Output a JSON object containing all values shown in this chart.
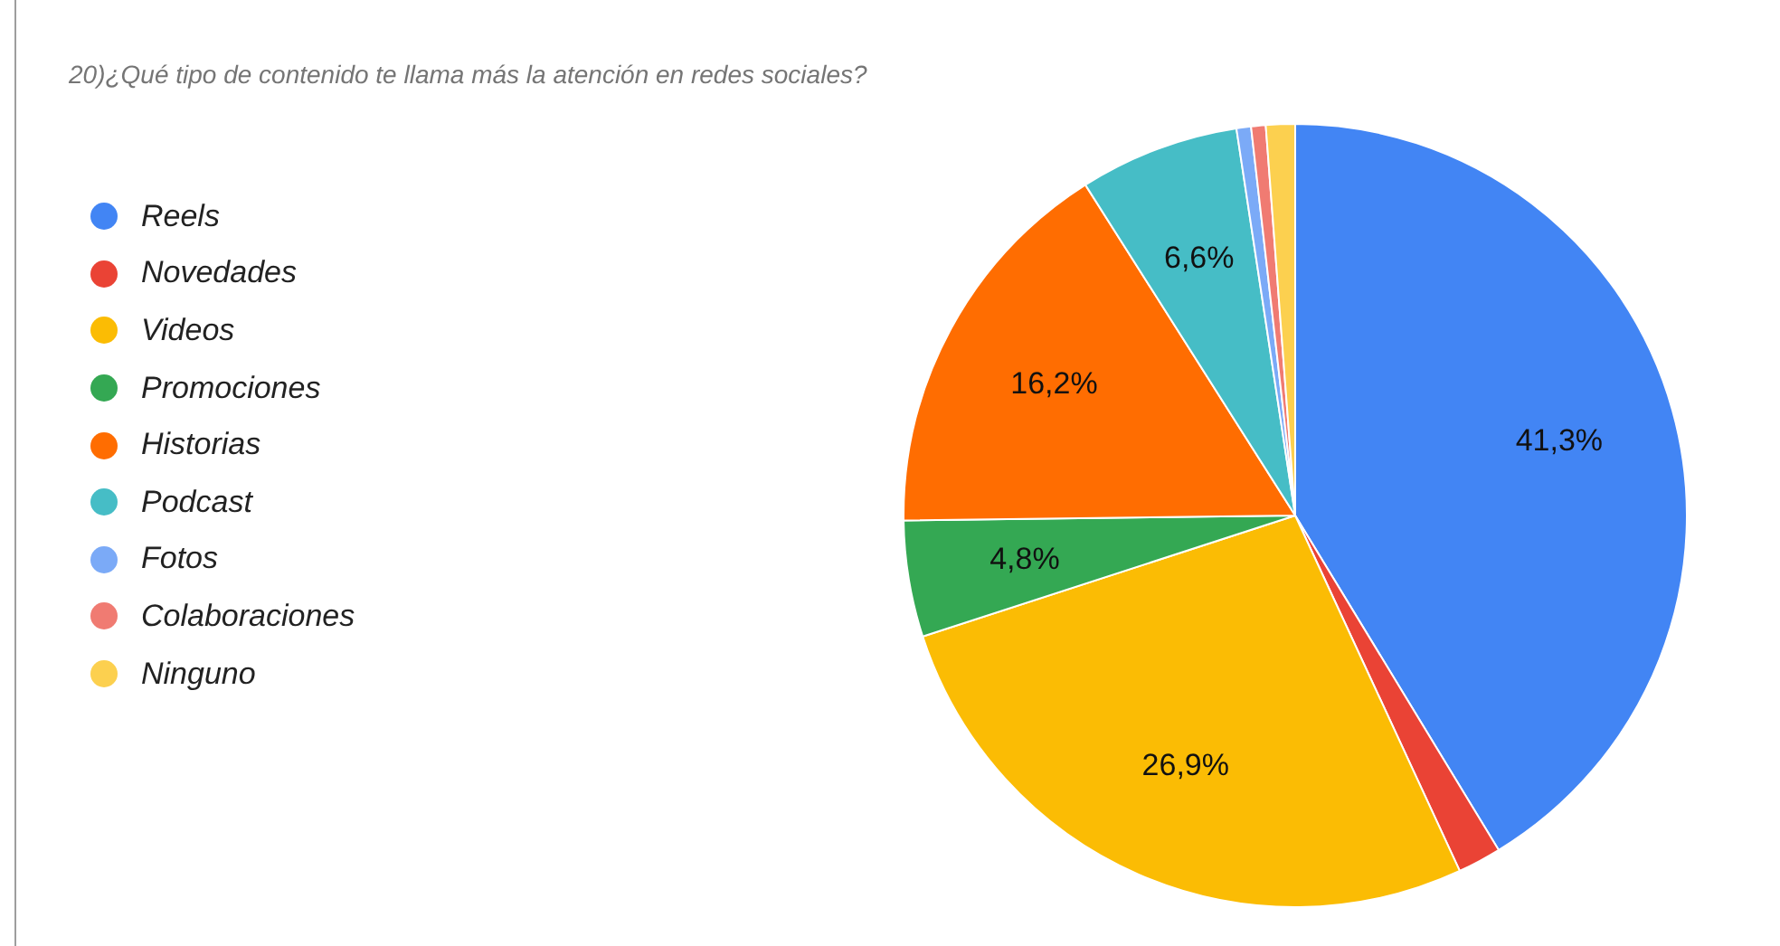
{
  "chart_data": {
    "type": "pie",
    "title": "20)¿Qué tipo de contenido te llama más la atención en redes sociales?",
    "categories": [
      "Reels",
      "Novedades",
      "Videos",
      "Promociones",
      "Historias",
      "Podcast",
      "Fotos",
      "Colaboraciones",
      "Ninguno"
    ],
    "values": [
      41.3,
      1.8,
      26.9,
      4.8,
      16.2,
      6.6,
      0.6,
      0.6,
      1.2
    ],
    "value_labels": [
      "41,3%",
      null,
      "26,9%",
      "4,8%",
      "16,2%",
      "6,6%",
      null,
      null,
      null
    ],
    "colors": [
      "#4285f4",
      "#ea4335",
      "#fbbc04",
      "#34a853",
      "#ff6d01",
      "#46bdc6",
      "#7baaf7",
      "#f07b72",
      "#fcd04f"
    ],
    "legend": "left"
  }
}
